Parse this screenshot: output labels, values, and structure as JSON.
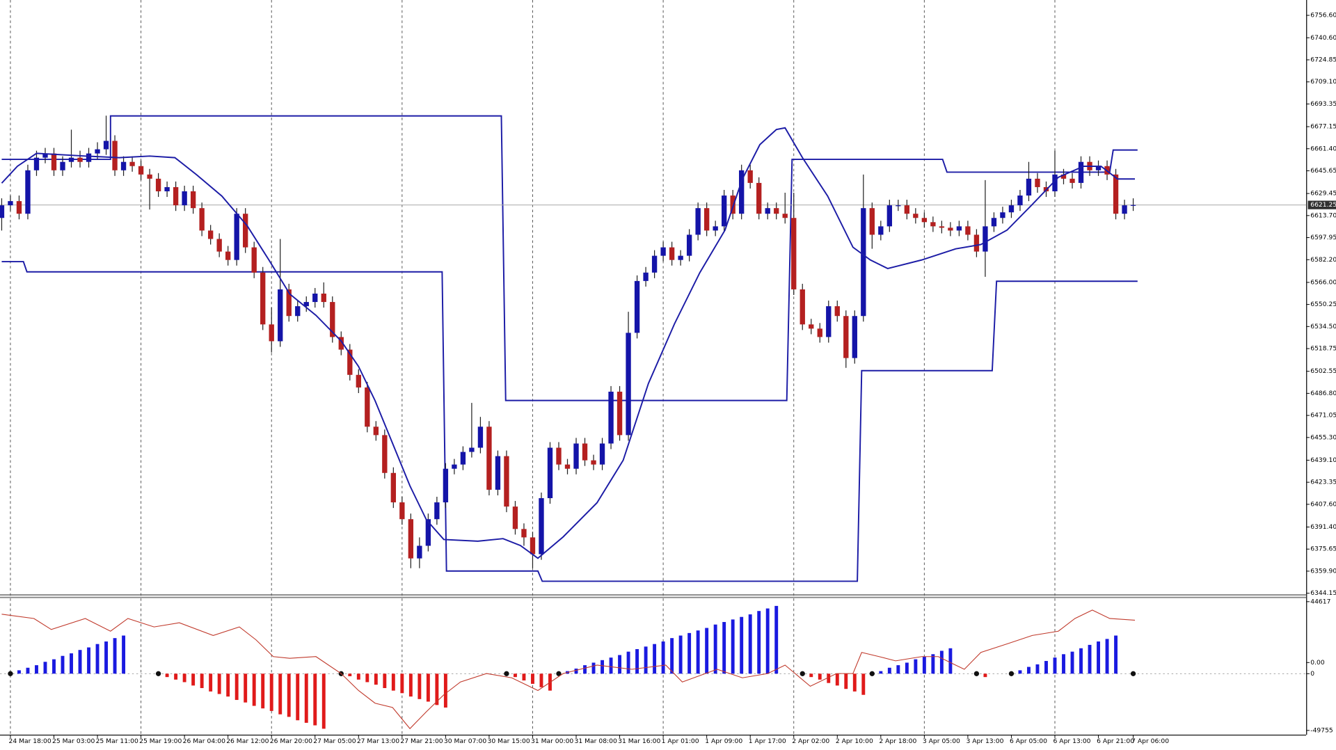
{
  "chart_data": [
    {
      "type": "candlestick",
      "categories": [
        null,
        "24 Mar 18:00",
        null,
        null,
        null,
        null,
        "25 Mar 03:00",
        null,
        null,
        null,
        null,
        "25 Mar 11:00",
        null,
        null,
        null,
        null,
        "25 Mar 19:00",
        null,
        null,
        null,
        null,
        "26 Mar 04:00",
        null,
        null,
        null,
        null,
        "26 Mar 12:00",
        null,
        null,
        null,
        null,
        "26 Mar 20:00",
        null,
        null,
        null,
        null,
        "27 Mar 05:00",
        null,
        null,
        null,
        null,
        "27 Mar 13:00",
        null,
        null,
        null,
        null,
        "27 Mar 21:00",
        null,
        null,
        null,
        null,
        "30 Mar 07:00",
        null,
        null,
        null,
        null,
        "30 Mar 15:00",
        null,
        null,
        null,
        null,
        "31 Mar 00:00",
        null,
        null,
        null,
        null,
        "31 Mar 08:00",
        null,
        null,
        null,
        null,
        "31 Mar 16:00",
        null,
        null,
        null,
        null,
        "1 Apr 01:00",
        null,
        null,
        null,
        null,
        "1 Apr 09:00",
        null,
        null,
        null,
        null,
        "1 Apr 17:00",
        null,
        null,
        null,
        null,
        "2 Apr 02:00",
        null,
        null,
        null,
        null,
        "2 Apr 10:00",
        null,
        null,
        null,
        null,
        "2 Apr 18:00",
        null,
        null,
        null,
        null,
        "3 Apr 05:00",
        null,
        null,
        null,
        null,
        "3 Apr 13:00",
        null,
        null,
        null,
        null,
        "6 Apr 05:00",
        null,
        null,
        null,
        null,
        "6 Apr 13:00",
        null,
        null,
        null,
        null,
        "6 Apr 21:00",
        null,
        null,
        null,
        "7 Apr 06:00"
      ],
      "open": [
        6612,
        6621,
        6624,
        6615,
        6646,
        6655,
        6658,
        6646,
        6652,
        6655,
        6652,
        6658,
        6661,
        6667,
        6646,
        6652,
        6649,
        6643,
        6640,
        6631,
        6634,
        6621,
        6631,
        6619,
        6603,
        6597,
        6588,
        6582,
        6615,
        6591,
        6573,
        6536,
        6524,
        6561,
        6542,
        6549,
        6552,
        6558,
        6552,
        6527,
        6518,
        6500,
        6491,
        6463,
        6457,
        6430,
        6409,
        6397,
        6369,
        6378,
        6397,
        6409,
        6433,
        6436,
        6445,
        6448,
        6463,
        6418,
        6442,
        6406,
        6390,
        6384,
        6372,
        6412,
        6448,
        6436,
        6433,
        6451,
        6439,
        6436,
        6451,
        6488,
        6457,
        6530,
        6567,
        6573,
        6585,
        6591,
        6582,
        6585,
        6600,
        6619,
        6603,
        6606,
        6628,
        6615,
        6646,
        6637,
        6615,
        6619,
        6615,
        6612,
        6561,
        6536,
        6533,
        6527,
        6549,
        6542,
        6512,
        6542,
        6619,
        6600,
        6606,
        6621,
        6621,
        6615,
        6612,
        6609,
        6606,
        6605,
        6603,
        6606,
        6600,
        6588,
        6606,
        6612,
        6616,
        6621,
        6628,
        6640,
        6634,
        6631,
        6643,
        6640,
        6637,
        6652,
        6646,
        6649,
        6643,
        6615,
        6621
      ],
      "high": [
        6626,
        6628,
        6628,
        6650,
        6660,
        6662,
        6662,
        6656,
        6675,
        6660,
        6662,
        6666,
        6685,
        6671,
        6656,
        6656,
        6653,
        6647,
        6644,
        6638,
        6638,
        6635,
        6635,
        6623,
        6607,
        6601,
        6592,
        6619,
        6619,
        6595,
        6577,
        6548,
        6597,
        6565,
        6553,
        6556,
        6562,
        6566,
        6556,
        6531,
        6522,
        6504,
        6495,
        6467,
        6461,
        6434,
        6413,
        6401,
        6384,
        6401,
        6413,
        6437,
        6440,
        6449,
        6480,
        6470,
        6467,
        6446,
        6446,
        6410,
        6394,
        6388,
        6416,
        6452,
        6452,
        6440,
        6455,
        6455,
        6443,
        6455,
        6492,
        6492,
        6545,
        6571,
        6577,
        6589,
        6595,
        6595,
        6589,
        6604,
        6623,
        6623,
        6610,
        6632,
        6632,
        6650,
        6650,
        6641,
        6623,
        6623,
        6630,
        6630,
        6565,
        6540,
        6537,
        6553,
        6553,
        6546,
        6546,
        6643,
        6623,
        6610,
        6625,
        6625,
        6625,
        6619,
        6616,
        6613,
        6610,
        6609,
        6610,
        6610,
        6604,
        6639,
        6616,
        6620,
        6625,
        6632,
        6652,
        6644,
        6638,
        6660,
        6647,
        6644,
        6656,
        6656,
        6653,
        6653,
        6647,
        6625,
        6626
      ],
      "low": [
        6603,
        6617,
        6611,
        6611,
        6642,
        6651,
        6642,
        6642,
        6648,
        6648,
        6648,
        6654,
        6657,
        6642,
        6642,
        6645,
        6639,
        6618,
        6627,
        6627,
        6617,
        6617,
        6615,
        6599,
        6593,
        6584,
        6578,
        6578,
        6587,
        6569,
        6532,
        6516,
        6520,
        6538,
        6538,
        6545,
        6548,
        6548,
        6523,
        6514,
        6496,
        6487,
        6459,
        6453,
        6426,
        6405,
        6393,
        6362,
        6362,
        6374,
        6393,
        6405,
        6429,
        6432,
        6441,
        6444,
        6414,
        6414,
        6402,
        6386,
        6378,
        6362,
        6368,
        6408,
        6432,
        6429,
        6429,
        6435,
        6432,
        6432,
        6447,
        6453,
        6453,
        6526,
        6563,
        6569,
        6581,
        6578,
        6578,
        6581,
        6596,
        6599,
        6599,
        6602,
        6611,
        6611,
        6633,
        6611,
        6611,
        6611,
        6608,
        6557,
        6532,
        6529,
        6523,
        6523,
        6538,
        6505,
        6508,
        6538,
        6590,
        6596,
        6602,
        6617,
        6611,
        6608,
        6605,
        6602,
        6601,
        6599,
        6599,
        6596,
        6584,
        6570,
        6602,
        6608,
        6612,
        6617,
        6624,
        6630,
        6627,
        6627,
        6636,
        6633,
        6633,
        6642,
        6642,
        6639,
        6611,
        6611,
        6617
      ],
      "close": [
        6621,
        6624,
        6615,
        6646,
        6655,
        6658,
        6646,
        6652,
        6655,
        6652,
        6658,
        6661,
        6667,
        6646,
        6652,
        6649,
        6643,
        6640,
        6631,
        6634,
        6621,
        6631,
        6619,
        6603,
        6597,
        6588,
        6582,
        6615,
        6591,
        6573,
        6536,
        6524,
        6561,
        6542,
        6549,
        6552,
        6558,
        6552,
        6527,
        6518,
        6500,
        6491,
        6463,
        6457,
        6430,
        6409,
        6397,
        6369,
        6378,
        6397,
        6409,
        6433,
        6436,
        6445,
        6448,
        6463,
        6418,
        6442,
        6406,
        6390,
        6384,
        6372,
        6412,
        6448,
        6436,
        6433,
        6451,
        6439,
        6436,
        6451,
        6488,
        6457,
        6530,
        6567,
        6573,
        6585,
        6591,
        6582,
        6585,
        6600,
        6619,
        6603,
        6606,
        6628,
        6615,
        6646,
        6637,
        6615,
        6619,
        6615,
        6612,
        6561,
        6536,
        6533,
        6527,
        6549,
        6542,
        6512,
        6542,
        6619,
        6600,
        6606,
        6621,
        6621,
        6615,
        6612,
        6609,
        6606,
        6605,
        6603,
        6606,
        6600,
        6588,
        6606,
        6612,
        6616,
        6621,
        6628,
        6640,
        6634,
        6631,
        6643,
        6640,
        6637,
        6652,
        6646,
        6649,
        6643,
        6615,
        6621,
        6621.25
      ],
      "up_color": "#1414a8",
      "down_color": "#b42020",
      "ma": {
        "color": "#1c1ca6",
        "x": [
          0,
          1.8,
          4,
          9.6,
          13.5,
          17,
          19.9,
          22.4,
          25.3,
          28.2,
          30.7,
          33.1,
          36.1,
          39,
          41,
          42.9,
          44.9,
          46.9,
          48.8,
          50.8,
          54.7,
          57.6,
          59.6,
          61.6,
          64.5,
          68.4,
          71.4,
          74.3,
          77.3,
          80.2,
          83.1,
          85.1,
          87.1,
          89,
          90,
          92,
          94.9,
          97.8,
          99.8,
          101.8,
          105.7,
          109.6,
          112.5,
          115.5,
          118.4,
          121.4,
          124.3,
          126.3,
          128.2,
          130.2
        ],
        "values": [
          6636.8,
          6648.9,
          6658.1,
          6656.2,
          6655,
          6656.2,
          6655,
          6642.8,
          6627.6,
          6606.4,
          6582,
          6557.7,
          6542.5,
          6524.2,
          6506,
          6481.6,
          6451.2,
          6420.8,
          6396.5,
          6382.5,
          6381.3,
          6383.1,
          6378.2,
          6369.1,
          6384.3,
          6408.7,
          6439.1,
          6493.8,
          6536.4,
          6572.9,
          6603.3,
          6639.8,
          6664.3,
          6675.1,
          6676.3,
          6655,
          6627.6,
          6591.1,
          6582,
          6575.9,
          6582,
          6589.9,
          6593,
          6603.3,
          6621.6,
          6641,
          6648.9,
          6648.9,
          6639.8,
          6639.8
        ]
      },
      "upper_channel": {
        "color": "#1c1ca6",
        "x": [
          0,
          12.5,
          12.5,
          57.4,
          57.9,
          90.2,
          90.8,
          108.1,
          108.6,
          127.3,
          127.7,
          130.5
        ],
        "values": [
          6653.8,
          6653.8,
          6684.8,
          6684.8,
          6481.7,
          6481.7,
          6653.8,
          6653.8,
          6644.7,
          6644.7,
          6660.5,
          6660.5
        ]
      },
      "lower_channel": {
        "color": "#1c1ca6",
        "x": [
          0,
          2.5,
          2.9,
          50.6,
          51.1,
          61.6,
          62.1,
          98.3,
          98.8,
          113.8,
          114.3,
          130.5
        ],
        "values": [
          6580.8,
          6580.8,
          6573.5,
          6573.5,
          6360,
          6360,
          6352.7,
          6352.7,
          6503,
          6503,
          6566.8,
          6566.8
        ]
      },
      "current_price": 6621.25,
      "ylim": [
        6342.96,
        6767.55
      ],
      "yticks": [
        {
          "value": 6756.6,
          "label": "6756.60"
        },
        {
          "value": 6740.6,
          "label": "6740.60"
        },
        6724.85,
        {
          "value": 6709.1,
          "label": "6709.10"
        },
        6693.35,
        6677.15,
        {
          "value": 6661.4,
          "label": "6661.40"
        },
        6645.65,
        6629.45,
        {
          "value": 6613.7,
          "label": "6613.70"
        },
        6597.95,
        {
          "value": 6582.2,
          "label": "6582.20"
        },
        {
          "value": 6566,
          "label": "6566.00"
        },
        6550.25,
        {
          "value": 6534.5,
          "label": "6534.50"
        },
        6518.75,
        6502.55,
        {
          "value": 6486.8,
          "label": "6486.80"
        },
        6471.05,
        {
          "value": 6455.3,
          "label": "6455.30"
        },
        {
          "value": 6439.1,
          "label": "6439.10"
        },
        6423.35,
        {
          "value": 6407.6,
          "label": "6407.60"
        },
        {
          "value": 6391.4,
          "label": "6391.40"
        },
        6375.65,
        {
          "value": 6359.9,
          "label": "6359.90"
        },
        6344.15
      ],
      "grid": true
    },
    {
      "type": "oscillator",
      "ylim": [
        -52860,
        47722
      ],
      "yticks": [
        44617,
        {
          "value": 0,
          "label": "0.00"
        },
        -49755
      ],
      "y2lim": [
        -72,
        90
      ],
      "y2ticks": [
        0
      ],
      "series": [
        {
          "type": "bar",
          "axis": "y2",
          "pos_color": "#1a1ae0",
          "neg_color": "#e01a1a",
          "values": [
            null,
            0,
            4,
            7,
            10,
            14,
            17,
            21,
            24,
            28,
            31,
            35,
            38,
            42,
            45,
            null,
            null,
            null,
            0,
            -4,
            -7,
            -10,
            -14,
            -17,
            -21,
            -24,
            -27,
            -31,
            -34,
            -38,
            -41,
            -44,
            -48,
            -51,
            -55,
            -58,
            -61,
            -65,
            null,
            0,
            -3,
            -7,
            -10,
            -13,
            -17,
            -20,
            -23,
            -27,
            -30,
            -33,
            -37,
            -40,
            null,
            null,
            null,
            null,
            null,
            null,
            0,
            -4,
            -8,
            -12,
            -16,
            -20,
            0,
            3,
            6,
            10,
            13,
            16,
            19,
            22,
            26,
            29,
            32,
            35,
            38,
            42,
            45,
            48,
            51,
            54,
            58,
            61,
            64,
            67,
            70,
            74,
            77,
            80,
            null,
            null,
            0,
            -4,
            -7,
            -11,
            -14,
            -18,
            -21,
            -25,
            0,
            3,
            7,
            10,
            13,
            17,
            20,
            23,
            27,
            30,
            null,
            null,
            0,
            -4,
            null,
            null,
            0,
            4,
            8,
            11,
            15,
            19,
            23,
            26,
            30,
            34,
            38,
            41,
            45,
            null,
            0
          ]
        },
        {
          "type": "line",
          "color": "#c0392b",
          "x": [
            0,
            3.7,
            5.7,
            9.6,
            12.5,
            14.5,
            17.5,
            20.4,
            24.3,
            27.3,
            29.2,
            31.2,
            33.1,
            36.1,
            39,
            41,
            42.9,
            44.9,
            46.9,
            48.8,
            50.8,
            52.7,
            55.7,
            58.6,
            61.6,
            64.5,
            68.4,
            72.4,
            76.3,
            78.2,
            82.2,
            85.1,
            88,
            90,
            92.9,
            95.9,
            97.8,
            98.8,
            100.8,
            102.7,
            105.7,
            107.6,
            109.6,
            110.6,
            112.5,
            115.5,
            118.4,
            121.4,
            123.3,
            125.3,
            127.3,
            130.2
          ],
          "values": [
            35391,
            32287,
            24215,
            32287,
            22973,
            32287,
            26078,
            29182,
            19869,
            26078,
            16764,
            4346,
            3105,
            4346,
            -8072,
            -20490,
            -29803,
            -32908,
            -48430,
            -36012,
            -23594,
            -14281,
            -8072,
            -11176,
            -20490,
            -8072,
            -1863,
            -4967,
            -1863,
            -14281,
            -4967,
            -11176,
            -8072,
            -1863,
            -17385,
            -8072,
            -8072,
            7451,
            4346,
            1242,
            4346,
            4346,
            -1863,
            -4967,
            7451,
            13660,
            19869,
            22973,
            32287,
            38496,
            32287,
            31045
          ]
        }
      ]
    }
  ]
}
